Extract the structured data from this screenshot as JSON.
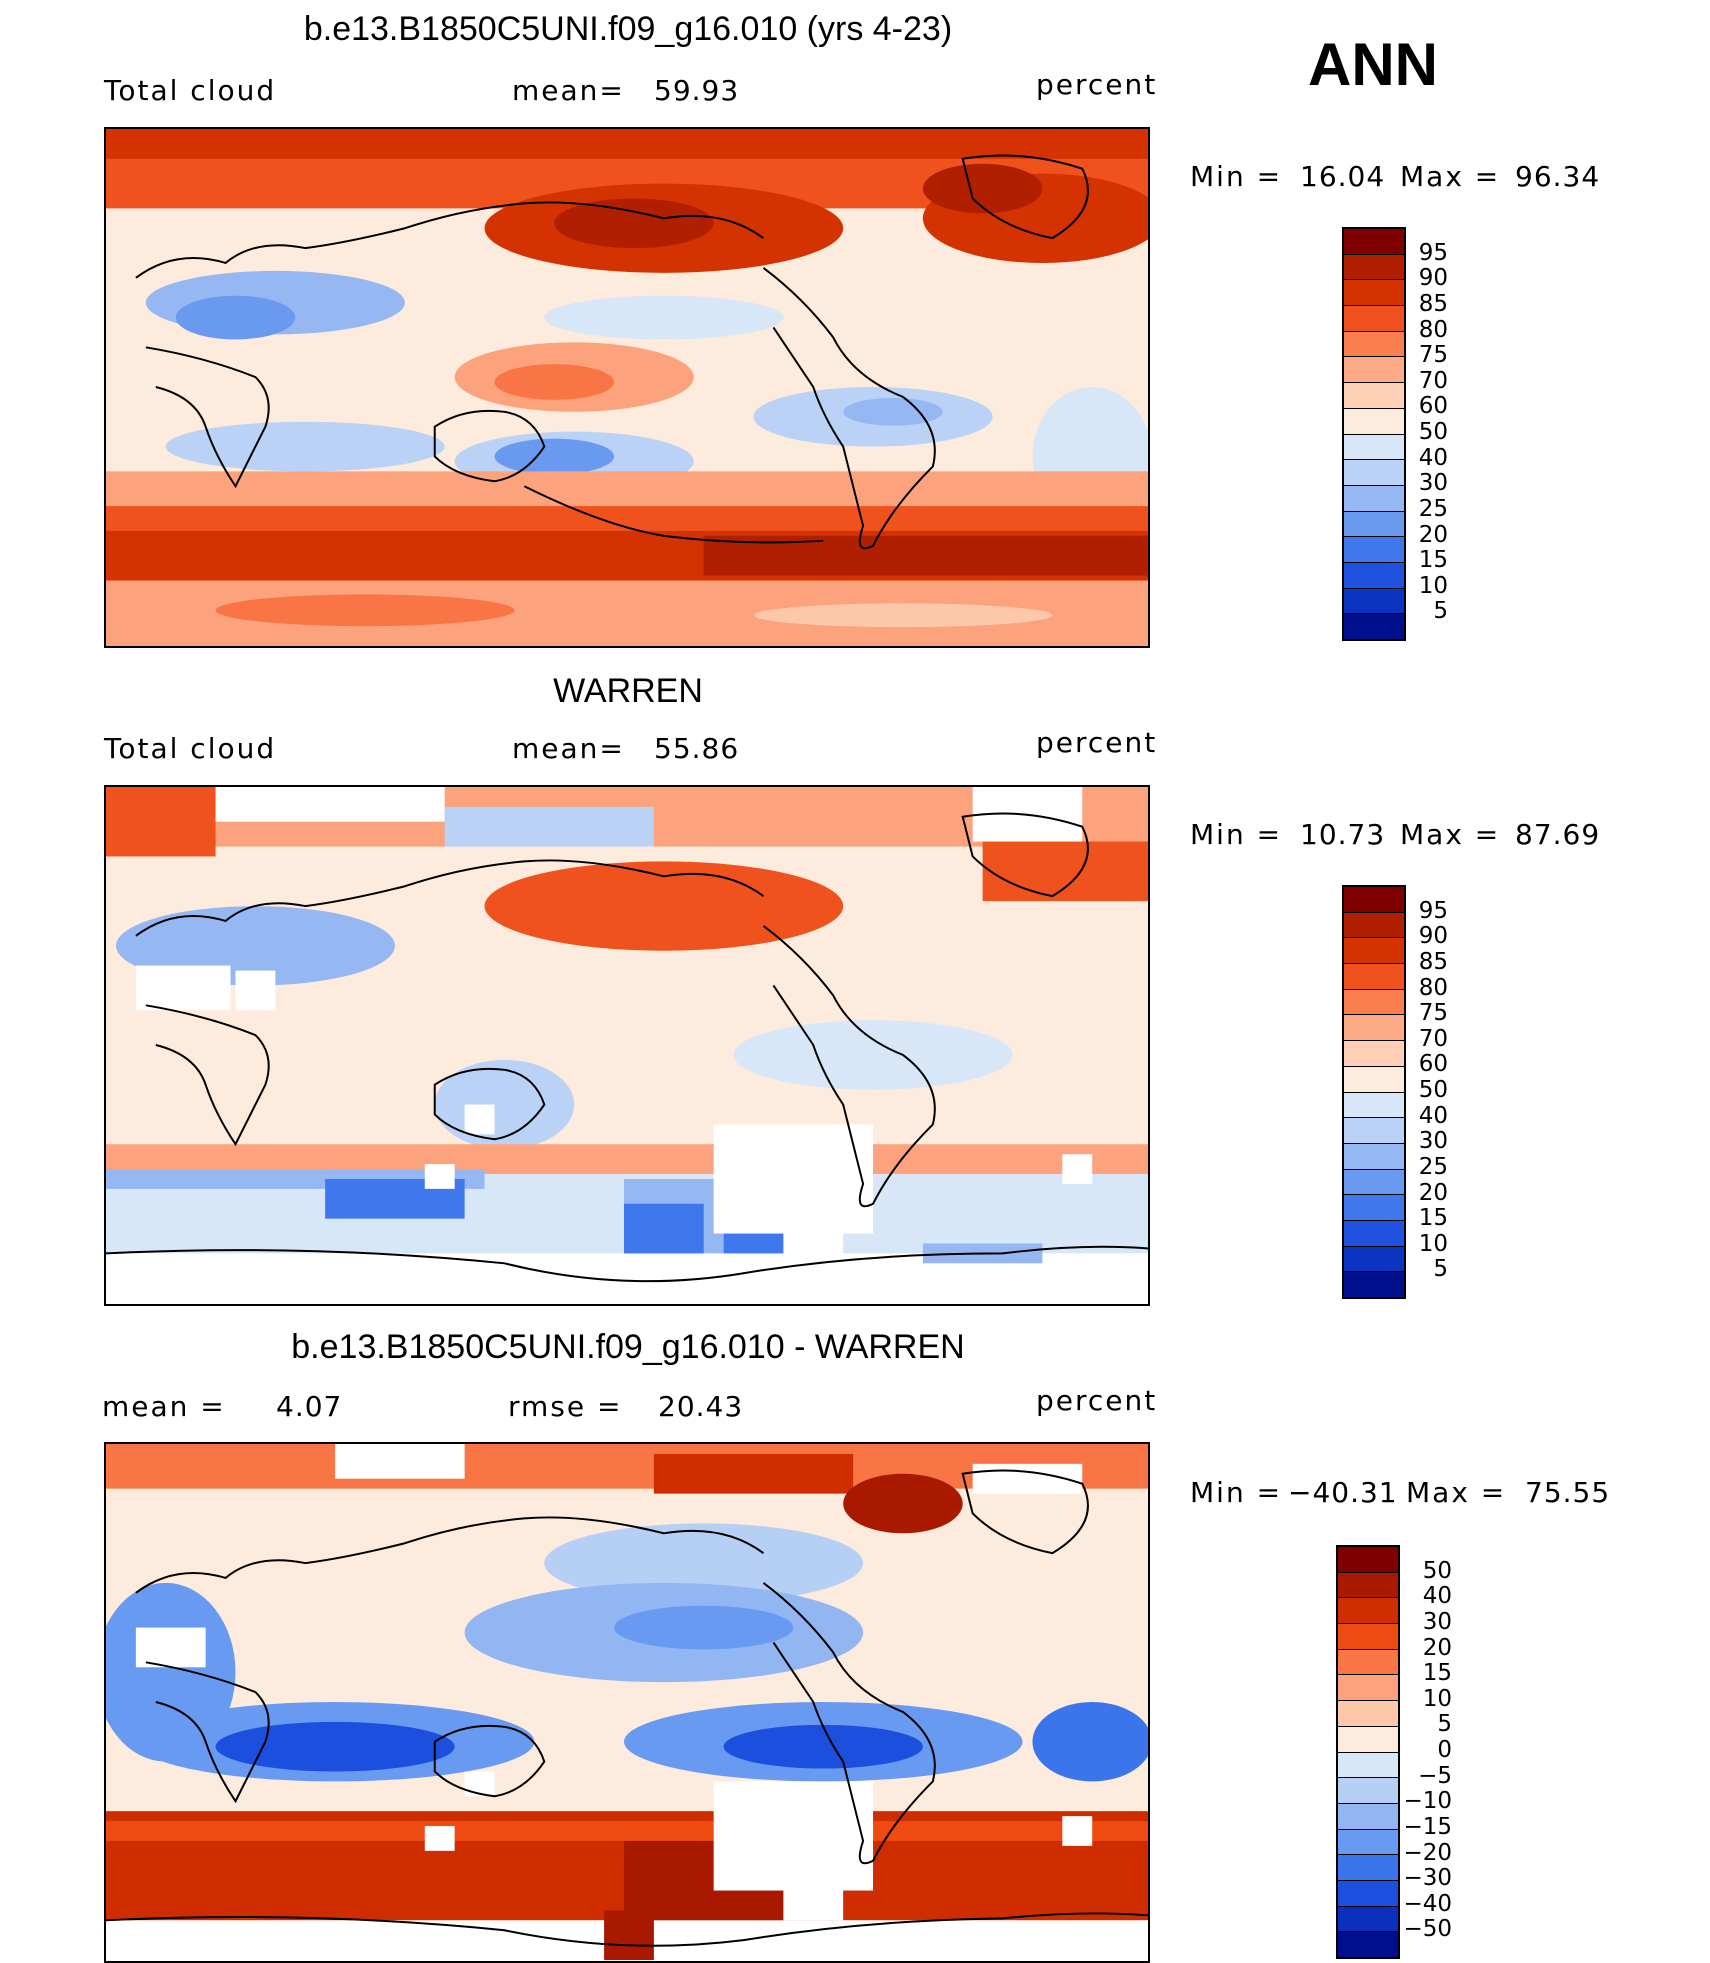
{
  "season": "ANN",
  "units": "percent",
  "panels": [
    {
      "title": "b.e13.B1850C5UNI.f09_g16.010 (yrs 4-23)",
      "left_label": "Total cloud",
      "stat_label": "mean=",
      "stat_value": "59.93",
      "units": "percent",
      "min_label": "Min",
      "min_value": "16.04",
      "max_label": "Max",
      "max_value": "96.34",
      "colorbar_levels": [
        "95",
        "90",
        "85",
        "80",
        "75",
        "70",
        "60",
        "50",
        "40",
        "30",
        "25",
        "20",
        "15",
        "10",
        "5"
      ],
      "field": "model"
    },
    {
      "title": "WARREN",
      "left_label": "Total cloud",
      "stat_label": "mean=",
      "stat_value": "55.86",
      "units": "percent",
      "min_label": "Min",
      "min_value": "10.73",
      "max_label": "Max",
      "max_value": "87.69",
      "colorbar_levels": [
        "95",
        "90",
        "85",
        "80",
        "75",
        "70",
        "60",
        "50",
        "40",
        "30",
        "25",
        "20",
        "15",
        "10",
        "5"
      ],
      "field": "obs"
    },
    {
      "title": "b.e13.B1850C5UNI.f09_g16.010 - WARREN",
      "left_label": "mean =",
      "left_value": "4.07",
      "stat_label": "rmse =",
      "stat_value": "20.43",
      "units": "percent",
      "min_label": "Min",
      "min_value": "−40.31",
      "max_label": "Max",
      "max_value": "75.55",
      "colorbar_levels": [
        "50",
        "40",
        "30",
        "20",
        "15",
        "10",
        "5",
        "0",
        "−5",
        "−10",
        "−15",
        "−20",
        "−30",
        "−40",
        "−50"
      ],
      "field": "diff"
    }
  ],
  "colormap": [
    "#800000",
    "#b01f00",
    "#d43200",
    "#f0521d",
    "#fa7e4e",
    "#fcab86",
    "#fdd0b5",
    "#fdebdd",
    "#d8e7f8",
    "#bad2f5",
    "#95b8f2",
    "#6a9af0",
    "#3e78ec",
    "#1f52df",
    "#0b34c0",
    "#00108c"
  ],
  "colormap_diff": [
    "#800000",
    "#a81900",
    "#cf2c00",
    "#ef4a12",
    "#f97546",
    "#fca27c",
    "#fdc8aa",
    "#fdebdd",
    "#d8e7f8",
    "#b6d0f5",
    "#91b6f2",
    "#679af0",
    "#3a75eb",
    "#1c4fde",
    "#0a30bd",
    "#00108c"
  ]
}
